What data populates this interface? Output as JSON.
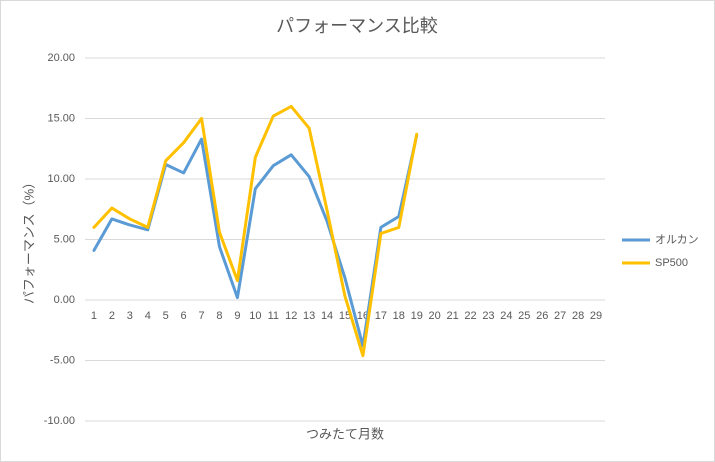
{
  "chart_data": {
    "type": "line",
    "title": "パフォーマンス比較",
    "x_label": "つみたて月数",
    "y_label": "パフォーマンス（%）",
    "categories": [
      1,
      2,
      3,
      4,
      5,
      6,
      7,
      8,
      9,
      10,
      11,
      12,
      13,
      14,
      15,
      16,
      17,
      18,
      19,
      20,
      21,
      22,
      23,
      24,
      25,
      26,
      27,
      28,
      29
    ],
    "series": [
      {
        "name": "オルカン",
        "color": "#5b9bd5",
        "values": [
          4.1,
          6.7,
          6.2,
          5.8,
          11.2,
          10.5,
          13.3,
          4.4,
          0.2,
          9.2,
          11.1,
          12.0,
          10.2,
          6.5,
          1.8,
          -3.8,
          6.0,
          6.9,
          13.6,
          null,
          null,
          null,
          null,
          null,
          null,
          null,
          null,
          null,
          null
        ]
      },
      {
        "name": "SP500",
        "color": "#ffc000",
        "values": [
          6.0,
          7.6,
          6.7,
          6.0,
          11.5,
          13.0,
          15.0,
          5.6,
          1.6,
          11.8,
          15.2,
          16.0,
          14.2,
          7.4,
          0.3,
          -4.6,
          5.5,
          6.0,
          13.7,
          null,
          null,
          null,
          null,
          null,
          null,
          null,
          null,
          null,
          null
        ]
      }
    ],
    "ylim": [
      -10,
      20
    ],
    "yticks": [
      {
        "value": -10,
        "label": "-10.00"
      },
      {
        "value": -5,
        "label": "-5.00"
      },
      {
        "value": 0,
        "label": "0.00"
      },
      {
        "value": 5,
        "label": "5.00"
      },
      {
        "value": 10,
        "label": "10.00"
      },
      {
        "value": 15,
        "label": "15.00"
      },
      {
        "value": 20,
        "label": "20.00"
      }
    ],
    "grid": true,
    "legend": "right"
  }
}
